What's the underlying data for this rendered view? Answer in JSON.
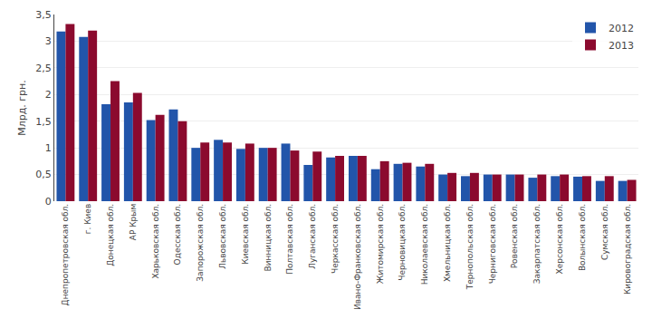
{
  "chart_data": {
    "type": "bar",
    "categories": [
      "Днепропетровская обл.",
      "г. Киев",
      "Донецкая обл.",
      "АР Крым",
      "Харьковская обл.",
      "Одесская обл.",
      "Запорожская обл.",
      "Львовская обл.",
      "Киевская обл.",
      "Винницкая обл.",
      "Полтавская обл.",
      "Луганская обл.",
      "Черкасская обл.",
      "Ивано-Франковская обл.",
      "Житомирская обл.",
      "Черновицкая обл.",
      "Николаевская обл.",
      "Хмельницкая обл.",
      "Тернопольская обл.",
      "Черниговская обл.",
      "Ровенская обл.",
      "Закарпатская обл.",
      "Херсонская обл.",
      "Волынская обл.",
      "Сумская обл.",
      "Кировоградская обл."
    ],
    "series": [
      {
        "name": "2012",
        "color": "#2255aa",
        "values": [
          3.18,
          3.08,
          1.82,
          1.85,
          1.52,
          1.72,
          1.0,
          1.15,
          0.98,
          1.0,
          1.08,
          0.68,
          0.82,
          0.85,
          0.6,
          0.7,
          0.65,
          0.5,
          0.47,
          0.5,
          0.5,
          0.44,
          0.47,
          0.46,
          0.38,
          0.38
        ]
      },
      {
        "name": "2013",
        "color": "#8b0a2e",
        "values": [
          3.32,
          3.2,
          2.25,
          2.03,
          1.62,
          1.5,
          1.1,
          1.1,
          1.08,
          1.0,
          0.95,
          0.93,
          0.85,
          0.85,
          0.75,
          0.72,
          0.7,
          0.53,
          0.53,
          0.5,
          0.5,
          0.5,
          0.5,
          0.47,
          0.47,
          0.4
        ]
      }
    ],
    "ylabel": "Млрд. грн.",
    "ylim": [
      0,
      3.5
    ],
    "yticks": [
      0,
      {
        "value": 0.5,
        "label": "0,5"
      },
      1,
      {
        "value": 1.5,
        "label": "1,5"
      },
      2,
      {
        "value": 2.5,
        "label": "2,5"
      },
      3,
      {
        "value": 3.5,
        "label": "3,5"
      }
    ],
    "grid": true,
    "legend": "upper right"
  }
}
